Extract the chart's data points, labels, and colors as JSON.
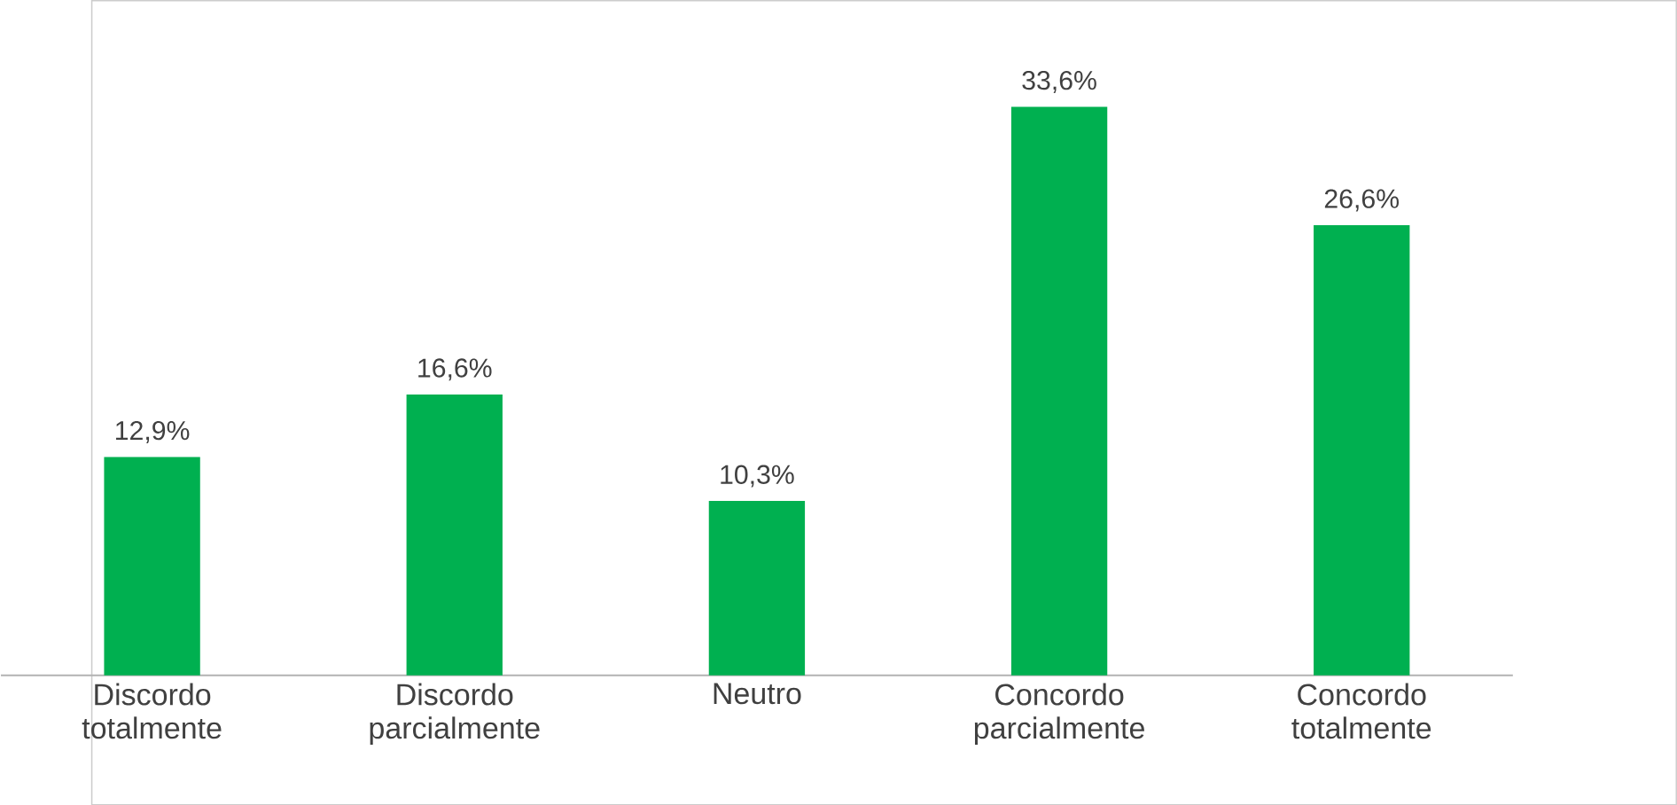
{
  "chart_data": {
    "type": "bar",
    "categories": [
      "Discordo totalmente",
      "Discordo parcialmente",
      "Neutro",
      "Concordo parcialmente",
      "Concordo totalmente"
    ],
    "values": [
      12.9,
      16.6,
      10.3,
      33.6,
      26.6
    ],
    "value_labels": [
      "12,9%",
      "16,6%",
      "10,3%",
      "33,6%",
      "26,6%"
    ],
    "color": "#00b050"
  }
}
